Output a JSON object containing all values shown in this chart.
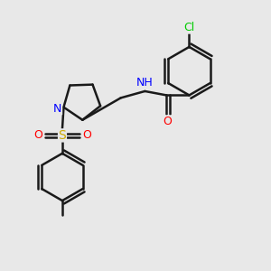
{
  "bg_color": "#e8e8e8",
  "bond_color": "#1a1a1a",
  "atom_colors": {
    "N": "#0000ff",
    "O": "#ff0000",
    "S": "#ccaa00",
    "Cl": "#00cc00",
    "H": "#808080",
    "C": "#1a1a1a"
  },
  "line_width": 1.8,
  "font_size": 9,
  "figsize": [
    3.0,
    3.0
  ],
  "dpi": 100
}
